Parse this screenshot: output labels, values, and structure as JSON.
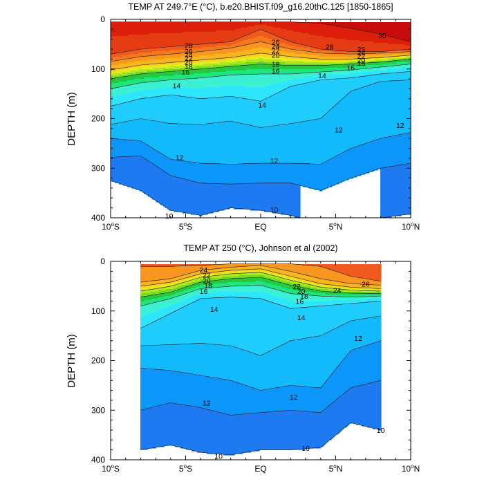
{
  "colors": {
    "levels": [
      {
        "min": -99,
        "color": "#1650e6"
      },
      {
        "min": 10,
        "color": "#1e7af0"
      },
      {
        "min": 11,
        "color": "#0c96fa"
      },
      {
        "min": 12,
        "color": "#12b9fb"
      },
      {
        "min": 13,
        "color": "#1ecdfb"
      },
      {
        "min": 14,
        "color": "#2ee6fb"
      },
      {
        "min": 15,
        "color": "#3cf0d2"
      },
      {
        "min": 16,
        "color": "#1ee678"
      },
      {
        "min": 17,
        "color": "#28c83c"
      },
      {
        "min": 18,
        "color": "#78dc1e"
      },
      {
        "min": 19,
        "color": "#b4e61e"
      },
      {
        "min": 20,
        "color": "#e6eb1e"
      },
      {
        "min": 21,
        "color": "#fad21e"
      },
      {
        "min": 22,
        "color": "#fab41e"
      },
      {
        "min": 24,
        "color": "#f89620"
      },
      {
        "min": 26,
        "color": "#f5781e"
      },
      {
        "min": 27,
        "color": "#f05a1e"
      },
      {
        "min": 28,
        "color": "#e63c14"
      },
      {
        "min": 29,
        "color": "#dc1e0a"
      },
      {
        "min": 30,
        "color": "#c80c0c"
      }
    ]
  },
  "chart_data": [
    {
      "type": "heatmap",
      "title": "TEMP AT 249.7°E (°C), b.e20.BHIST.f09_g16.20thC.125 [1850-1865]",
      "ylabel": "DEPTH (m)",
      "xlim": [
        -10,
        10
      ],
      "ylim": [
        400,
        0
      ],
      "data_x_range": [
        -10,
        10
      ],
      "data_depth_top": 5,
      "x_ticks": [
        {
          "value": -10,
          "label": "10°S"
        },
        {
          "value": -5,
          "label": "5°S"
        },
        {
          "value": 0,
          "label": "EQ"
        },
        {
          "value": 5,
          "label": "5°N"
        },
        {
          "value": 10,
          "label": "10°N"
        }
      ],
      "y_ticks": [
        0,
        100,
        200,
        300,
        400
      ],
      "isotherm_depths_m": {
        "x": [
          -10,
          -8,
          -6,
          -4,
          -2,
          0,
          2,
          4,
          6,
          8,
          10
        ],
        "T30": [
          0,
          0,
          0,
          0,
          0,
          0,
          0,
          8,
          18,
          30,
          45
        ],
        "T28": [
          70,
          60,
          55,
          50,
          45,
          20,
          45,
          60,
          65,
          65,
          60
        ],
        "T26": [
          85,
          75,
          70,
          65,
          58,
          45,
          60,
          68,
          70,
          68,
          65
        ],
        "T22": [
          102,
          92,
          87,
          82,
          77,
          68,
          75,
          80,
          80,
          77,
          72
        ],
        "T18": [
          120,
          110,
          105,
          100,
          95,
          90,
          93,
          93,
          90,
          86,
          80
        ],
        "T16": [
          140,
          128,
          122,
          118,
          112,
          110,
          110,
          106,
          102,
          96,
          90
        ],
        "T14": [
          175,
          160,
          152,
          160,
          155,
          165,
          135,
          122,
          118,
          110,
          105
        ],
        "T13": [
          212,
          200,
          210,
          212,
          205,
          218,
          210,
          200,
          145,
          125,
          122
        ],
        "T12": [
          240,
          245,
          282,
          290,
          292,
          290,
          290,
          292,
          260,
          240,
          228
        ],
        "T11": [
          278,
          275,
          315,
          330,
          332,
          330,
          330,
          345,
          320,
          300,
          290
        ],
        "T10": [
          325,
          345,
          385,
          395,
          380,
          385,
          395,
          410,
          410,
          400,
          392
        ]
      },
      "contour_labels": [
        {
          "text": "30",
          "x": 8.1,
          "depth": 32
        },
        {
          "text": "28",
          "x": -4.8,
          "depth": 52
        },
        {
          "text": "28",
          "x": 4.6,
          "depth": 55
        },
        {
          "text": "26",
          "x": 1.0,
          "depth": 45
        },
        {
          "text": "26",
          "x": 6.7,
          "depth": 60
        },
        {
          "text": "26",
          "x": -4.8,
          "depth": 64
        },
        {
          "text": "24",
          "x": 1.0,
          "depth": 54
        },
        {
          "text": "24",
          "x": -4.8,
          "depth": 71
        },
        {
          "text": "24",
          "x": 6.7,
          "depth": 67
        },
        {
          "text": "22",
          "x": 1.0,
          "depth": 63
        },
        {
          "text": "22",
          "x": -4.8,
          "depth": 78
        },
        {
          "text": "22",
          "x": 6.7,
          "depth": 74
        },
        {
          "text": "20",
          "x": 1.0,
          "depth": 72
        },
        {
          "text": "20",
          "x": -4.8,
          "depth": 86
        },
        {
          "text": "20",
          "x": 6.7,
          "depth": 82
        },
        {
          "text": "18",
          "x": -4.8,
          "depth": 95
        },
        {
          "text": "18",
          "x": 1.0,
          "depth": 90
        },
        {
          "text": "18",
          "x": 6.7,
          "depth": 88
        },
        {
          "text": "16",
          "x": -5.0,
          "depth": 106
        },
        {
          "text": "16",
          "x": 1.0,
          "depth": 104
        },
        {
          "text": "16",
          "x": 6.0,
          "depth": 97
        },
        {
          "text": "14",
          "x": -5.6,
          "depth": 133
        },
        {
          "text": "14",
          "x": 0.1,
          "depth": 172
        },
        {
          "text": "14",
          "x": 4.1,
          "depth": 113
        },
        {
          "text": "12",
          "x": 5.2,
          "depth": 222
        },
        {
          "text": "12",
          "x": 9.3,
          "depth": 213
        },
        {
          "text": "12",
          "x": -5.4,
          "depth": 278
        },
        {
          "text": "12",
          "x": 0.9,
          "depth": 284
        },
        {
          "text": "10",
          "x": -6.1,
          "depth": 396
        },
        {
          "text": "10",
          "x": 0.9,
          "depth": 383
        }
      ]
    },
    {
      "type": "heatmap",
      "title": "TEMP AT 250 (°C), Johnson et al (2002)",
      "ylabel": "DEPTH (m)",
      "xlim": [
        -10,
        10
      ],
      "ylim": [
        400,
        0
      ],
      "data_x_range": [
        -8,
        8
      ],
      "data_depth_top": 5,
      "x_ticks": [
        {
          "value": -10,
          "label": "10°S"
        },
        {
          "value": -5,
          "label": "5°S"
        },
        {
          "value": 0,
          "label": "EQ"
        },
        {
          "value": 5,
          "label": "5°N"
        },
        {
          "value": 10,
          "label": "10°N"
        }
      ],
      "y_ticks": [
        0,
        100,
        200,
        300,
        400
      ],
      "isotherm_depths_m": {
        "x": [
          -8,
          -6,
          -4,
          -2,
          0,
          2,
          4,
          6,
          8
        ],
        "T26": [
          10,
          10,
          8,
          5,
          5,
          5,
          10,
          30,
          40
        ],
        "T24": [
          42,
          35,
          18,
          12,
          8,
          20,
          35,
          45,
          48
        ],
        "T22": [
          50,
          42,
          25,
          18,
          15,
          30,
          45,
          52,
          55
        ],
        "T20": [
          60,
          50,
          32,
          25,
          22,
          38,
          52,
          58,
          60
        ],
        "T18": [
          72,
          62,
          42,
          35,
          32,
          48,
          60,
          64,
          65
        ],
        "T16": [
          90,
          75,
          55,
          50,
          48,
          65,
          70,
          72,
          70
        ],
        "T14": [
          135,
          105,
          75,
          72,
          75,
          95,
          90,
          85,
          80
        ],
        "T13": [
          170,
          168,
          165,
          170,
          190,
          160,
          150,
          120,
          110
        ],
        "T12": [
          215,
          220,
          230,
          240,
          260,
          250,
          255,
          180,
          160
        ],
        "T11": [
          300,
          285,
          295,
          310,
          305,
          300,
          305,
          255,
          240
        ],
        "T10": [
          380,
          370,
          385,
          390,
          380,
          380,
          375,
          325,
          340
        ]
      },
      "contour_labels": [
        {
          "text": "24",
          "x": -3.8,
          "depth": 17
        },
        {
          "text": "22",
          "x": -3.6,
          "depth": 27
        },
        {
          "text": "20",
          "x": -3.6,
          "depth": 38
        },
        {
          "text": "18",
          "x": -3.5,
          "depth": 48
        },
        {
          "text": "16",
          "x": -3.8,
          "depth": 60
        },
        {
          "text": "14",
          "x": -3.1,
          "depth": 96
        },
        {
          "text": "22",
          "x": 2.4,
          "depth": 50
        },
        {
          "text": "24",
          "x": 5.1,
          "depth": 58
        },
        {
          "text": "26",
          "x": 7.0,
          "depth": 45
        },
        {
          "text": "20",
          "x": 2.7,
          "depth": 60
        },
        {
          "text": "18",
          "x": 2.9,
          "depth": 70
        },
        {
          "text": "16",
          "x": 2.6,
          "depth": 80
        },
        {
          "text": "14",
          "x": 2.7,
          "depth": 113
        },
        {
          "text": "12",
          "x": 6.5,
          "depth": 155
        },
        {
          "text": "12",
          "x": -3.6,
          "depth": 285
        },
        {
          "text": "12",
          "x": 2.2,
          "depth": 273
        },
        {
          "text": "10",
          "x": 8.0,
          "depth": 340
        },
        {
          "text": "10",
          "x": 3.0,
          "depth": 376
        },
        {
          "text": "10",
          "x": -2.8,
          "depth": 392
        }
      ]
    }
  ]
}
